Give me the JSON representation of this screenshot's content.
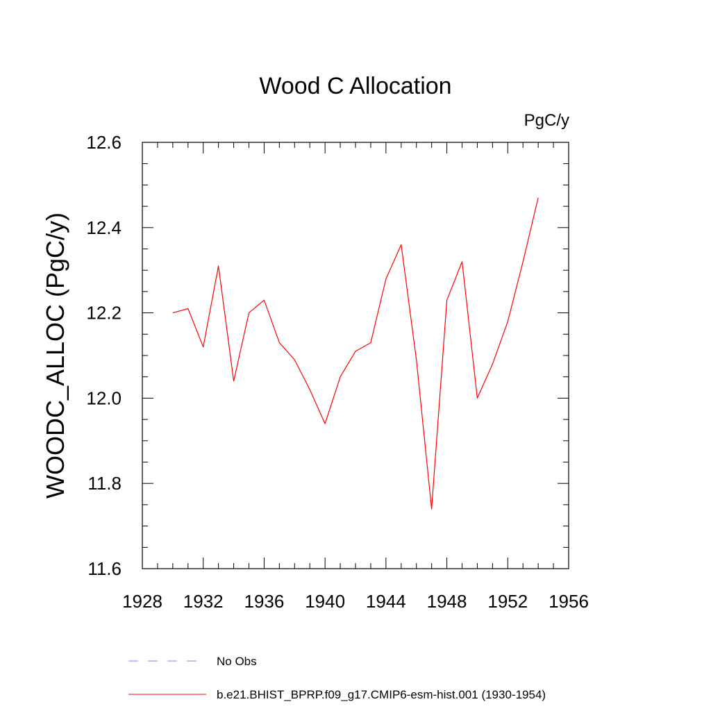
{
  "chart_data": {
    "type": "line",
    "title": "Wood C Allocation",
    "units": "PgC/y",
    "ylabel": "WOODC_ALLOC  (PgC/y)",
    "xlabel": "",
    "xlim": [
      1928,
      1956
    ],
    "ylim": [
      11.6,
      12.6
    ],
    "xticks": [
      "1928",
      "1932",
      "1936",
      "1940",
      "1944",
      "1948",
      "1952",
      "1956"
    ],
    "yticks": [
      "11.6",
      "11.8",
      "12.0",
      "12.2",
      "12.4",
      "12.6"
    ],
    "grid": false,
    "legend_position": "bottom",
    "series": [
      {
        "name": "b.e21.BHIST_BPRP.f09_g17.CMIP6-esm-hist.001 (1930-1954)",
        "color": "#ff0000",
        "style": "solid",
        "x": [
          1930,
          1931,
          1932,
          1933,
          1934,
          1935,
          1936,
          1937,
          1938,
          1939,
          1940,
          1941,
          1942,
          1943,
          1944,
          1945,
          1946,
          1947,
          1948,
          1949,
          1950,
          1951,
          1952,
          1953,
          1954
        ],
        "y": [
          12.2,
          12.21,
          12.12,
          12.31,
          12.04,
          12.2,
          12.23,
          12.13,
          12.09,
          12.02,
          11.94,
          12.05,
          12.11,
          12.13,
          12.28,
          12.36,
          12.09,
          11.74,
          12.23,
          12.32,
          12.0,
          12.08,
          12.18,
          12.32,
          12.47
        ]
      }
    ],
    "legend": [
      {
        "label": "No Obs",
        "color": "#8080ff",
        "style": "dashed"
      },
      {
        "label": "b.e21.BHIST_BPRP.f09_g17.CMIP6-esm-hist.001 (1930-1954)",
        "color": "#ff0000",
        "style": "solid"
      }
    ]
  }
}
